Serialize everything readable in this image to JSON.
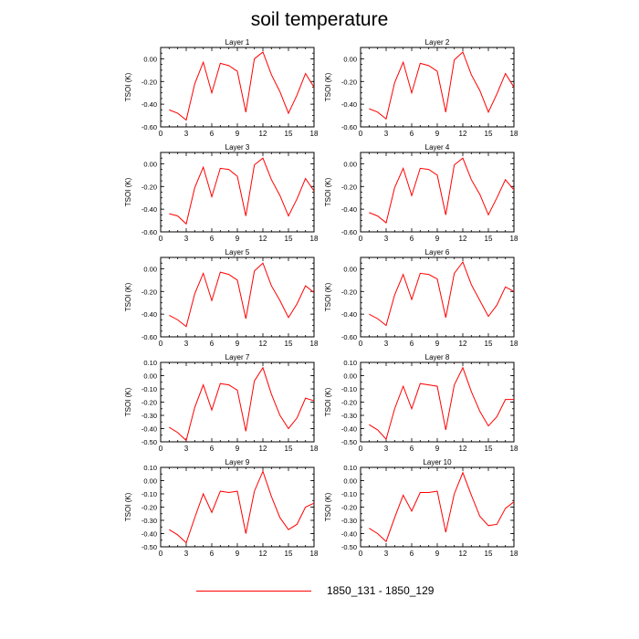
{
  "figure": {
    "title": "soil temperature",
    "legend_label": "1850_131 - 1850_129",
    "line_color": "#ff0000"
  },
  "chart_data": [
    {
      "type": "line",
      "title": "Layer 1",
      "ylabel": "TSOI  (K)",
      "xlim": [
        0,
        18
      ],
      "ylim": [
        -0.6,
        0.1
      ],
      "xticks": [
        "0",
        "3",
        "6",
        "9",
        "12",
        "15",
        "18"
      ],
      "yticks": [
        "-0.60",
        "-0.40",
        "-0.20",
        "0.00"
      ],
      "x": [
        1,
        2,
        3,
        4,
        5,
        6,
        7,
        8,
        9,
        10,
        11,
        12,
        13,
        14,
        15,
        16,
        17,
        18
      ],
      "series": [
        {
          "values": [
            -0.45,
            -0.48,
            -0.54,
            -0.22,
            -0.03,
            -0.3,
            -0.04,
            -0.06,
            -0.11,
            -0.47,
            0.0,
            0.06,
            -0.14,
            -0.29,
            -0.48,
            -0.32,
            -0.13,
            -0.25
          ]
        }
      ]
    },
    {
      "type": "line",
      "title": "Layer 2",
      "ylabel": "TSOI  (K)",
      "xlim": [
        0,
        18
      ],
      "ylim": [
        -0.6,
        0.1
      ],
      "xticks": [
        "0",
        "3",
        "6",
        "9",
        "12",
        "15",
        "18"
      ],
      "yticks": [
        "-0.60",
        "-0.40",
        "-0.20",
        "0.00"
      ],
      "x": [
        1,
        2,
        3,
        4,
        5,
        6,
        7,
        8,
        9,
        10,
        11,
        12,
        13,
        14,
        15,
        16,
        17,
        18
      ],
      "series": [
        {
          "values": [
            -0.44,
            -0.47,
            -0.53,
            -0.21,
            -0.03,
            -0.3,
            -0.04,
            -0.06,
            -0.11,
            -0.47,
            -0.01,
            0.06,
            -0.14,
            -0.28,
            -0.47,
            -0.31,
            -0.13,
            -0.25
          ]
        }
      ]
    },
    {
      "type": "line",
      "title": "Layer 3",
      "ylabel": "TSOI  (K)",
      "xlim": [
        0,
        18
      ],
      "ylim": [
        -0.6,
        0.1
      ],
      "xticks": [
        "0",
        "3",
        "6",
        "9",
        "12",
        "15",
        "18"
      ],
      "yticks": [
        "-0.60",
        "-0.40",
        "-0.20",
        "0.00"
      ],
      "x": [
        1,
        2,
        3,
        4,
        5,
        6,
        7,
        8,
        9,
        10,
        11,
        12,
        13,
        14,
        15,
        16,
        17,
        18
      ],
      "series": [
        {
          "values": [
            -0.44,
            -0.46,
            -0.53,
            -0.21,
            -0.03,
            -0.29,
            -0.04,
            -0.05,
            -0.11,
            -0.46,
            -0.01,
            0.05,
            -0.14,
            -0.28,
            -0.46,
            -0.31,
            -0.13,
            -0.24
          ]
        }
      ]
    },
    {
      "type": "line",
      "title": "Layer 4",
      "ylabel": "TSOI  (K)",
      "xlim": [
        0,
        18
      ],
      "ylim": [
        -0.6,
        0.1
      ],
      "xticks": [
        "0",
        "3",
        "6",
        "9",
        "12",
        "15",
        "18"
      ],
      "yticks": [
        "-0.60",
        "-0.40",
        "-0.20",
        "0.00"
      ],
      "x": [
        1,
        2,
        3,
        4,
        5,
        6,
        7,
        8,
        9,
        10,
        11,
        12,
        13,
        14,
        15,
        16,
        17,
        18
      ],
      "series": [
        {
          "values": [
            -0.43,
            -0.46,
            -0.52,
            -0.21,
            -0.04,
            -0.28,
            -0.04,
            -0.05,
            -0.1,
            -0.45,
            -0.01,
            0.05,
            -0.14,
            -0.27,
            -0.45,
            -0.3,
            -0.14,
            -0.23
          ]
        }
      ]
    },
    {
      "type": "line",
      "title": "Layer 5",
      "ylabel": "TSOI  (K)",
      "xlim": [
        0,
        18
      ],
      "ylim": [
        -0.6,
        0.1
      ],
      "xticks": [
        "0",
        "3",
        "6",
        "9",
        "12",
        "15",
        "18"
      ],
      "yticks": [
        "-0.60",
        "-0.40",
        "-0.20",
        "0.00"
      ],
      "x": [
        1,
        2,
        3,
        4,
        5,
        6,
        7,
        8,
        9,
        10,
        11,
        12,
        13,
        14,
        15,
        16,
        17,
        18
      ],
      "series": [
        {
          "values": [
            -0.41,
            -0.45,
            -0.51,
            -0.22,
            -0.04,
            -0.28,
            -0.03,
            -0.05,
            -0.1,
            -0.44,
            -0.02,
            0.05,
            -0.15,
            -0.28,
            -0.43,
            -0.31,
            -0.15,
            -0.21
          ]
        }
      ]
    },
    {
      "type": "line",
      "title": "Layer 6",
      "ylabel": "TSOI  (K)",
      "xlim": [
        0,
        18
      ],
      "ylim": [
        -0.6,
        0.1
      ],
      "xticks": [
        "0",
        "3",
        "6",
        "9",
        "12",
        "15",
        "18"
      ],
      "yticks": [
        "-0.60",
        "-0.40",
        "-0.20",
        "0.00"
      ],
      "x": [
        1,
        2,
        3,
        4,
        5,
        6,
        7,
        8,
        9,
        10,
        11,
        12,
        13,
        14,
        15,
        16,
        17,
        18
      ],
      "series": [
        {
          "values": [
            -0.4,
            -0.44,
            -0.5,
            -0.23,
            -0.05,
            -0.27,
            -0.04,
            -0.05,
            -0.09,
            -0.43,
            -0.04,
            0.06,
            -0.14,
            -0.28,
            -0.42,
            -0.32,
            -0.16,
            -0.2
          ]
        }
      ]
    },
    {
      "type": "line",
      "title": "Layer 7",
      "ylabel": "TSOI  (K)",
      "xlim": [
        0,
        18
      ],
      "ylim": [
        -0.5,
        0.1
      ],
      "xticks": [
        "0",
        "3",
        "6",
        "9",
        "12",
        "15",
        "18"
      ],
      "yticks": [
        "-0.50",
        "-0.40",
        "-0.30",
        "-0.20",
        "-0.10",
        "0.00",
        "0.10"
      ],
      "x": [
        1,
        2,
        3,
        4,
        5,
        6,
        7,
        8,
        9,
        10,
        11,
        12,
        13,
        14,
        15,
        16,
        17,
        18
      ],
      "series": [
        {
          "values": [
            -0.39,
            -0.43,
            -0.49,
            -0.24,
            -0.07,
            -0.26,
            -0.06,
            -0.07,
            -0.11,
            -0.42,
            -0.04,
            0.06,
            -0.14,
            -0.3,
            -0.4,
            -0.32,
            -0.17,
            -0.19
          ]
        }
      ]
    },
    {
      "type": "line",
      "title": "Layer 8",
      "ylabel": "TSOI  (K)",
      "xlim": [
        0,
        18
      ],
      "ylim": [
        -0.5,
        0.1
      ],
      "xticks": [
        "0",
        "3",
        "6",
        "9",
        "12",
        "15",
        "18"
      ],
      "yticks": [
        "-0.50",
        "-0.40",
        "-0.30",
        "-0.20",
        "-0.10",
        "0.00",
        "0.10"
      ],
      "x": [
        1,
        2,
        3,
        4,
        5,
        6,
        7,
        8,
        9,
        10,
        11,
        12,
        13,
        14,
        15,
        16,
        17,
        18
      ],
      "series": [
        {
          "values": [
            -0.37,
            -0.41,
            -0.48,
            -0.25,
            -0.08,
            -0.25,
            -0.06,
            -0.07,
            -0.08,
            -0.41,
            -0.07,
            0.06,
            -0.12,
            -0.27,
            -0.38,
            -0.31,
            -0.18,
            -0.18
          ]
        }
      ]
    },
    {
      "type": "line",
      "title": "Layer 9",
      "ylabel": "TSOI  (K)",
      "xlim": [
        0,
        18
      ],
      "ylim": [
        -0.5,
        0.1
      ],
      "xticks": [
        "0",
        "3",
        "6",
        "9",
        "12",
        "15",
        "18"
      ],
      "yticks": [
        "-0.50",
        "-0.40",
        "-0.30",
        "-0.20",
        "-0.10",
        "0.00",
        "0.10"
      ],
      "x": [
        1,
        2,
        3,
        4,
        5,
        6,
        7,
        8,
        9,
        10,
        11,
        12,
        13,
        14,
        15,
        16,
        17,
        18
      ],
      "series": [
        {
          "values": [
            -0.37,
            -0.41,
            -0.47,
            -0.28,
            -0.1,
            -0.24,
            -0.08,
            -0.09,
            -0.08,
            -0.4,
            -0.08,
            0.07,
            -0.12,
            -0.28,
            -0.37,
            -0.33,
            -0.2,
            -0.17
          ]
        }
      ]
    },
    {
      "type": "line",
      "title": "Layer 10",
      "ylabel": "TSOI  (K)",
      "xlim": [
        0,
        18
      ],
      "ylim": [
        -0.5,
        0.1
      ],
      "xticks": [
        "0",
        "3",
        "6",
        "9",
        "12",
        "15",
        "18"
      ],
      "yticks": [
        "-0.50",
        "-0.40",
        "-0.30",
        "-0.20",
        "-0.10",
        "0.00",
        "0.10"
      ],
      "x": [
        1,
        2,
        3,
        4,
        5,
        6,
        7,
        8,
        9,
        10,
        11,
        12,
        13,
        14,
        15,
        16,
        17,
        18
      ],
      "series": [
        {
          "values": [
            -0.36,
            -0.4,
            -0.46,
            -0.28,
            -0.11,
            -0.23,
            -0.09,
            -0.09,
            -0.08,
            -0.39,
            -0.1,
            0.06,
            -0.11,
            -0.27,
            -0.34,
            -0.33,
            -0.21,
            -0.16
          ]
        }
      ]
    }
  ]
}
